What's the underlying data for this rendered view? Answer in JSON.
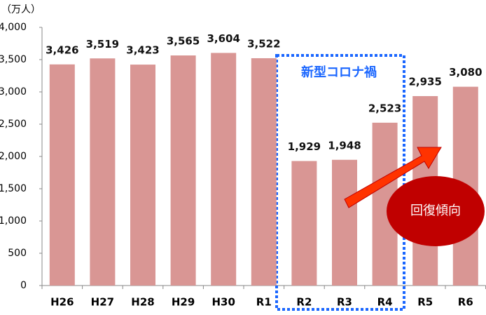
{
  "chart_data": {
    "type": "bar",
    "unit_label": "（万人）",
    "categories": [
      "H26",
      "H27",
      "H28",
      "H29",
      "H30",
      "R1",
      "R2",
      "R3",
      "R4",
      "R5",
      "R6"
    ],
    "values": [
      3426,
      3519,
      3423,
      3565,
      3604,
      3522,
      1929,
      1948,
      2523,
      2935,
      3080
    ],
    "value_labels": [
      "3,426",
      "3,519",
      "3,423",
      "3,565",
      "3,604",
      "3,522",
      "1,929",
      "1,948",
      "2,523",
      "2,935",
      "3,080"
    ],
    "color": "#d99694",
    "ylim": [
      0,
      4000
    ],
    "yticks": [
      0,
      500,
      {
        "value": 1000,
        "label": "1,000"
      },
      {
        "value": 1500,
        "label": "1,500"
      },
      {
        "value": 2000,
        "label": "2,000"
      },
      {
        "value": 2500,
        "label": "2,500"
      },
      {
        "value": 3000,
        "label": "3,000"
      },
      {
        "value": 3500,
        "label": "3,500"
      },
      {
        "value": 4000,
        "label": "4,000"
      }
    ],
    "annotations": [
      "新型コロナ禍",
      "回復傾向"
    ]
  }
}
